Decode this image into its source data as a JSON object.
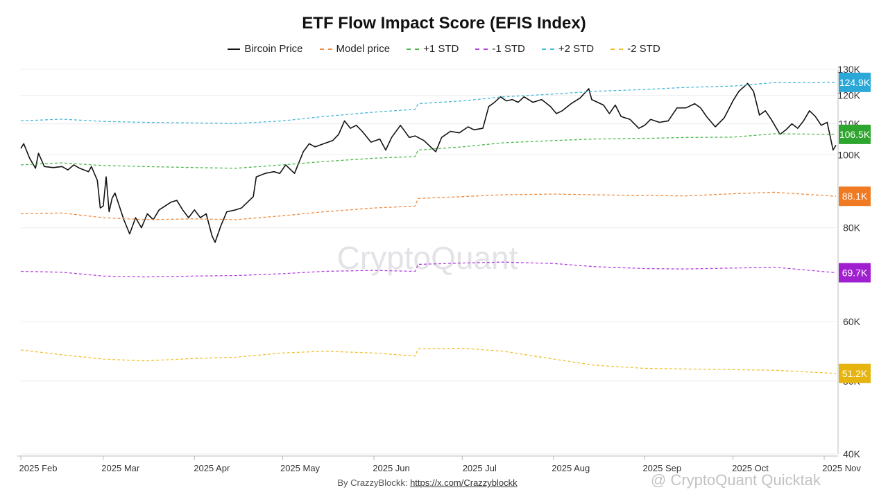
{
  "header": {
    "title": "ETF Flow Impact Score (EFIS Index)"
  },
  "legend": [
    {
      "label": "Bircoin Price",
      "color": "#111111",
      "dashed": false
    },
    {
      "label": "Model price",
      "color": "#f08a3c",
      "dashed": true
    },
    {
      "label": "+1 STD",
      "color": "#4cb84c",
      "dashed": true
    },
    {
      "label": "-1 STD",
      "color": "#b23fe0",
      "dashed": true
    },
    {
      "label": "+2 STD",
      "color": "#45b8d8",
      "dashed": true
    },
    {
      "label": "-2 STD",
      "color": "#f0c030",
      "dashed": true
    }
  ],
  "footer": {
    "prefix": "By CrazzyBlockk: ",
    "link": "https://x.com/Crazzyblockk"
  },
  "watermark": {
    "center": "CryptoQuant",
    "bottom": "@ CryptoQuant Quicktak"
  },
  "chart_data": {
    "type": "line",
    "title": "ETF Flow Impact Score (EFIS Index)",
    "yscale": "log",
    "ylim": [
      40000,
      130000
    ],
    "y_ticks": [
      {
        "value": 40000,
        "label": "40K"
      },
      {
        "value": 50000,
        "label": "50K"
      },
      {
        "value": 60000,
        "label": "60K"
      },
      {
        "value": 80000,
        "label": "80K"
      },
      {
        "value": 100000,
        "label": "100K"
      },
      {
        "value": 110000,
        "label": "110K"
      },
      {
        "value": 120000,
        "label": "120K"
      },
      {
        "value": 130000,
        "label": "130K"
      }
    ],
    "x_ticks": [
      {
        "date": "2025-02-01",
        "label": "2025 Feb"
      },
      {
        "date": "2025-03-01",
        "label": "2025 Mar"
      },
      {
        "date": "2025-04-01",
        "label": "2025 Apr"
      },
      {
        "date": "2025-05-01",
        "label": "2025 May"
      },
      {
        "date": "2025-06-01",
        "label": "2025 Jun"
      },
      {
        "date": "2025-07-01",
        "label": "2025 Jul"
      },
      {
        "date": "2025-08-01",
        "label": "2025 Aug"
      },
      {
        "date": "2025-09-01",
        "label": "2025 Sep"
      },
      {
        "date": "2025-10-01",
        "label": "2025 Oct"
      },
      {
        "date": "2025-11-01",
        "label": "2025 Nov"
      }
    ],
    "xlim": [
      "2025-02-01",
      "2025-11-05"
    ],
    "grid": true,
    "legend_position": "top",
    "series": [
      {
        "name": "Bircoin Price",
        "color": "#111111",
        "dashed": false,
        "points": [
          [
            "2025-02-01",
            102000
          ],
          [
            "2025-02-02",
            103500
          ],
          [
            "2025-02-04",
            99000
          ],
          [
            "2025-02-06",
            96000
          ],
          [
            "2025-02-07",
            100500
          ],
          [
            "2025-02-09",
            96500
          ],
          [
            "2025-02-12",
            96200
          ],
          [
            "2025-02-15",
            96500
          ],
          [
            "2025-02-17",
            95500
          ],
          [
            "2025-02-19",
            97000
          ],
          [
            "2025-02-21",
            96000
          ],
          [
            "2025-02-24",
            95000
          ],
          [
            "2025-02-25",
            96500
          ],
          [
            "2025-02-27",
            92500
          ],
          [
            "2025-02-28",
            85000
          ],
          [
            "2025-03-01",
            85500
          ],
          [
            "2025-03-02",
            93500
          ],
          [
            "2025-03-03",
            84000
          ],
          [
            "2025-03-04",
            87500
          ],
          [
            "2025-03-05",
            89000
          ],
          [
            "2025-03-08",
            82000
          ],
          [
            "2025-03-10",
            78500
          ],
          [
            "2025-03-12",
            82500
          ],
          [
            "2025-03-14",
            80000
          ],
          [
            "2025-03-16",
            83500
          ],
          [
            "2025-03-18",
            82000
          ],
          [
            "2025-03-20",
            84500
          ],
          [
            "2025-03-22",
            85500
          ],
          [
            "2025-03-24",
            86500
          ],
          [
            "2025-03-26",
            87000
          ],
          [
            "2025-03-28",
            84500
          ],
          [
            "2025-03-30",
            82500
          ],
          [
            "2025-04-01",
            84500
          ],
          [
            "2025-04-03",
            82500
          ],
          [
            "2025-04-05",
            83500
          ],
          [
            "2025-04-07",
            78000
          ],
          [
            "2025-04-08",
            76500
          ],
          [
            "2025-04-10",
            80500
          ],
          [
            "2025-04-12",
            84000
          ],
          [
            "2025-04-15",
            84500
          ],
          [
            "2025-04-17",
            85000
          ],
          [
            "2025-04-21",
            88000
          ],
          [
            "2025-04-22",
            93500
          ],
          [
            "2025-04-25",
            94500
          ],
          [
            "2025-04-28",
            95000
          ],
          [
            "2025-04-30",
            94500
          ],
          [
            "2025-05-02",
            97000
          ],
          [
            "2025-05-05",
            94500
          ],
          [
            "2025-05-08",
            101000
          ],
          [
            "2025-05-10",
            103500
          ],
          [
            "2025-05-12",
            102500
          ],
          [
            "2025-05-15",
            103500
          ],
          [
            "2025-05-18",
            104500
          ],
          [
            "2025-05-20",
            106500
          ],
          [
            "2025-05-22",
            111000
          ],
          [
            "2025-05-24",
            108500
          ],
          [
            "2025-05-26",
            109500
          ],
          [
            "2025-05-28",
            107500
          ],
          [
            "2025-05-31",
            104000
          ],
          [
            "2025-06-03",
            105000
          ],
          [
            "2025-06-05",
            101500
          ],
          [
            "2025-06-07",
            105500
          ],
          [
            "2025-06-10",
            109500
          ],
          [
            "2025-06-13",
            105500
          ],
          [
            "2025-06-15",
            106000
          ],
          [
            "2025-06-18",
            104500
          ],
          [
            "2025-06-22",
            101000
          ],
          [
            "2025-06-24",
            105500
          ],
          [
            "2025-06-27",
            107500
          ],
          [
            "2025-06-30",
            107000
          ],
          [
            "2025-07-03",
            109000
          ],
          [
            "2025-07-05",
            108000
          ],
          [
            "2025-07-08",
            108500
          ],
          [
            "2025-07-10",
            116000
          ],
          [
            "2025-07-12",
            117500
          ],
          [
            "2025-07-14",
            119500
          ],
          [
            "2025-07-16",
            118000
          ],
          [
            "2025-07-18",
            118500
          ],
          [
            "2025-07-20",
            117500
          ],
          [
            "2025-07-22",
            119500
          ],
          [
            "2025-07-25",
            117500
          ],
          [
            "2025-07-28",
            118500
          ],
          [
            "2025-07-31",
            116000
          ],
          [
            "2025-08-02",
            113500
          ],
          [
            "2025-08-04",
            114500
          ],
          [
            "2025-08-07",
            117000
          ],
          [
            "2025-08-10",
            119000
          ],
          [
            "2025-08-13",
            122500
          ],
          [
            "2025-08-14",
            118500
          ],
          [
            "2025-08-16",
            117500
          ],
          [
            "2025-08-18",
            116500
          ],
          [
            "2025-08-20",
            113500
          ],
          [
            "2025-08-22",
            116500
          ],
          [
            "2025-08-24",
            112500
          ],
          [
            "2025-08-27",
            111500
          ],
          [
            "2025-08-30",
            108500
          ],
          [
            "2025-09-01",
            109500
          ],
          [
            "2025-09-03",
            111500
          ],
          [
            "2025-09-06",
            110500
          ],
          [
            "2025-09-09",
            111000
          ],
          [
            "2025-09-12",
            115500
          ],
          [
            "2025-09-15",
            115500
          ],
          [
            "2025-09-18",
            117000
          ],
          [
            "2025-09-20",
            115500
          ],
          [
            "2025-09-22",
            112500
          ],
          [
            "2025-09-25",
            109000
          ],
          [
            "2025-09-28",
            112000
          ],
          [
            "2025-10-01",
            118000
          ],
          [
            "2025-10-03",
            121500
          ],
          [
            "2025-10-05",
            123500
          ],
          [
            "2025-10-06",
            124500
          ],
          [
            "2025-10-08",
            121500
          ],
          [
            "2025-10-10",
            113000
          ],
          [
            "2025-10-12",
            114500
          ],
          [
            "2025-10-14",
            111500
          ],
          [
            "2025-10-17",
            106500
          ],
          [
            "2025-10-19",
            108000
          ],
          [
            "2025-10-21",
            110000
          ],
          [
            "2025-10-23",
            108500
          ],
          [
            "2025-10-25",
            111000
          ],
          [
            "2025-10-27",
            114500
          ],
          [
            "2025-10-29",
            112500
          ],
          [
            "2025-10-31",
            109500
          ],
          [
            "2025-11-02",
            110500
          ],
          [
            "2025-11-03",
            106000
          ],
          [
            "2025-11-04",
            101500
          ],
          [
            "2025-11-05",
            103000
          ]
        ]
      },
      {
        "name": "Model price",
        "color": "#f08a3c",
        "dashed": true,
        "points": [
          [
            "2025-02-01",
            83500
          ],
          [
            "2025-02-15",
            83700
          ],
          [
            "2025-03-01",
            82500
          ],
          [
            "2025-03-15",
            82000
          ],
          [
            "2025-04-01",
            82200
          ],
          [
            "2025-04-15",
            82000
          ],
          [
            "2025-05-01",
            83000
          ],
          [
            "2025-05-15",
            84000
          ],
          [
            "2025-06-01",
            85000
          ],
          [
            "2025-06-15",
            85500
          ],
          [
            "2025-06-16",
            87500
          ],
          [
            "2025-07-01",
            88000
          ],
          [
            "2025-07-15",
            88500
          ],
          [
            "2025-08-01",
            88700
          ],
          [
            "2025-08-15",
            88500
          ],
          [
            "2025-09-01",
            88300
          ],
          [
            "2025-09-15",
            88200
          ],
          [
            "2025-10-01",
            88800
          ],
          [
            "2025-10-15",
            89200
          ],
          [
            "2025-11-05",
            88100
          ]
        ]
      },
      {
        "name": "+1 STD",
        "color": "#4cb84c",
        "dashed": true,
        "points": [
          [
            "2025-02-01",
            97000
          ],
          [
            "2025-02-15",
            97600
          ],
          [
            "2025-03-01",
            96800
          ],
          [
            "2025-03-15",
            96500
          ],
          [
            "2025-04-01",
            96200
          ],
          [
            "2025-04-15",
            96000
          ],
          [
            "2025-05-01",
            97000
          ],
          [
            "2025-05-15",
            98000
          ],
          [
            "2025-06-01",
            99000
          ],
          [
            "2025-06-15",
            99500
          ],
          [
            "2025-06-16",
            101500
          ],
          [
            "2025-07-01",
            102500
          ],
          [
            "2025-07-15",
            103800
          ],
          [
            "2025-08-01",
            104500
          ],
          [
            "2025-08-15",
            105000
          ],
          [
            "2025-09-01",
            105200
          ],
          [
            "2025-09-15",
            105500
          ],
          [
            "2025-10-01",
            105600
          ],
          [
            "2025-10-15",
            106700
          ],
          [
            "2025-11-05",
            106500
          ]
        ]
      },
      {
        "name": "-1 STD",
        "color": "#b23fe0",
        "dashed": true,
        "points": [
          [
            "2025-02-01",
            70000
          ],
          [
            "2025-02-15",
            69800
          ],
          [
            "2025-03-01",
            69000
          ],
          [
            "2025-03-15",
            68800
          ],
          [
            "2025-04-01",
            69000
          ],
          [
            "2025-04-15",
            69100
          ],
          [
            "2025-05-01",
            69500
          ],
          [
            "2025-05-15",
            70000
          ],
          [
            "2025-06-01",
            70200
          ],
          [
            "2025-06-15",
            70000
          ],
          [
            "2025-06-16",
            71500
          ],
          [
            "2025-07-01",
            71800
          ],
          [
            "2025-07-15",
            72000
          ],
          [
            "2025-08-01",
            71700
          ],
          [
            "2025-08-15",
            71000
          ],
          [
            "2025-09-01",
            70600
          ],
          [
            "2025-09-15",
            70500
          ],
          [
            "2025-10-01",
            70700
          ],
          [
            "2025-10-15",
            70900
          ],
          [
            "2025-11-05",
            69700
          ]
        ]
      },
      {
        "name": "+2 STD",
        "color": "#45b8d8",
        "dashed": true,
        "points": [
          [
            "2025-02-01",
            111000
          ],
          [
            "2025-02-15",
            111600
          ],
          [
            "2025-03-01",
            110800
          ],
          [
            "2025-03-15",
            110500
          ],
          [
            "2025-04-01",
            110300
          ],
          [
            "2025-04-15",
            110100
          ],
          [
            "2025-05-01",
            111000
          ],
          [
            "2025-05-15",
            112500
          ],
          [
            "2025-06-01",
            114000
          ],
          [
            "2025-06-15",
            115000
          ],
          [
            "2025-06-16",
            117000
          ],
          [
            "2025-07-01",
            118000
          ],
          [
            "2025-07-15",
            119500
          ],
          [
            "2025-08-01",
            120500
          ],
          [
            "2025-08-15",
            121500
          ],
          [
            "2025-09-01",
            122200
          ],
          [
            "2025-09-15",
            123000
          ],
          [
            "2025-10-01",
            123500
          ],
          [
            "2025-10-15",
            124800
          ],
          [
            "2025-11-05",
            124900
          ]
        ]
      },
      {
        "name": "-2 STD",
        "color": "#f0c030",
        "dashed": true,
        "points": [
          [
            "2025-02-01",
            55000
          ],
          [
            "2025-02-15",
            54200
          ],
          [
            "2025-03-01",
            53500
          ],
          [
            "2025-03-15",
            53200
          ],
          [
            "2025-04-01",
            53600
          ],
          [
            "2025-04-15",
            53800
          ],
          [
            "2025-05-01",
            54500
          ],
          [
            "2025-05-15",
            54800
          ],
          [
            "2025-06-01",
            54500
          ],
          [
            "2025-06-15",
            54000
          ],
          [
            "2025-06-16",
            55200
          ],
          [
            "2025-07-01",
            55300
          ],
          [
            "2025-07-15",
            54800
          ],
          [
            "2025-08-01",
            53500
          ],
          [
            "2025-08-15",
            52500
          ],
          [
            "2025-09-01",
            52000
          ],
          [
            "2025-09-15",
            51900
          ],
          [
            "2025-10-01",
            51800
          ],
          [
            "2025-10-15",
            51700
          ],
          [
            "2025-11-05",
            51200
          ]
        ]
      }
    ],
    "end_labels": [
      {
        "text": "124.9K",
        "value": 124900,
        "color": "#2aa8d8"
      },
      {
        "text": "106.5K",
        "value": 106500,
        "color": "#2ea52e"
      },
      {
        "text": "88.1K",
        "value": 88100,
        "color": "#ef7a22"
      },
      {
        "text": "69.7K",
        "value": 69700,
        "color": "#a020d0"
      },
      {
        "text": "51.2K",
        "value": 51200,
        "color": "#e6b40e"
      }
    ]
  }
}
